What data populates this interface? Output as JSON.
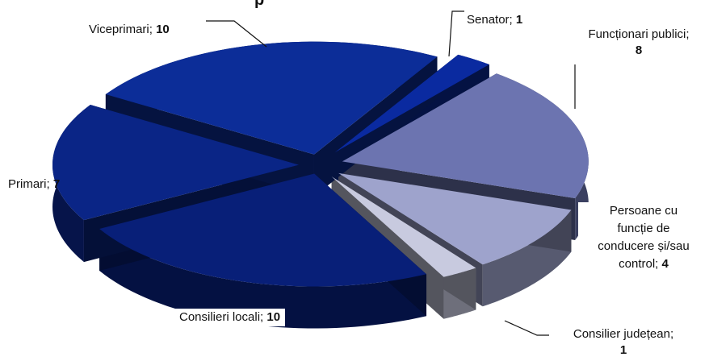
{
  "chart_data": {
    "type": "pie",
    "title": "",
    "slices": [
      {
        "name": "Senator",
        "value": 1,
        "color": "#0a2aa0"
      },
      {
        "name": "Funcționari publici",
        "value": 8,
        "color": "#6c74b0"
      },
      {
        "name": "Persoane cu funcție de conducere și/sau control",
        "value": 4,
        "color": "#9ea3cc"
      },
      {
        "name": "Consilier județean",
        "value": 1,
        "color": "#c8cadf"
      },
      {
        "name": "Consilieri locali",
        "value": 10,
        "color": "#081f78"
      },
      {
        "name": "Primari",
        "value": 7,
        "color": "#0a2586"
      },
      {
        "name": "Viceprimari",
        "value": 10,
        "color": "#0c2d98"
      }
    ],
    "labels": [
      {
        "name": "Senator",
        "value": "1"
      },
      {
        "name": "Funcționari publici;",
        "value": "8"
      },
      {
        "lines": [
          "Persoane cu",
          "funcție de",
          "conducere și/sau"
        ],
        "name": "control",
        "value": "4"
      },
      {
        "name": "Consilier județean;",
        "value": "1"
      },
      {
        "name": "Consilieri locali",
        "value": "10"
      },
      {
        "name": "Primari",
        "value": "7"
      },
      {
        "name": "Viceprimari",
        "value": "10"
      }
    ]
  }
}
